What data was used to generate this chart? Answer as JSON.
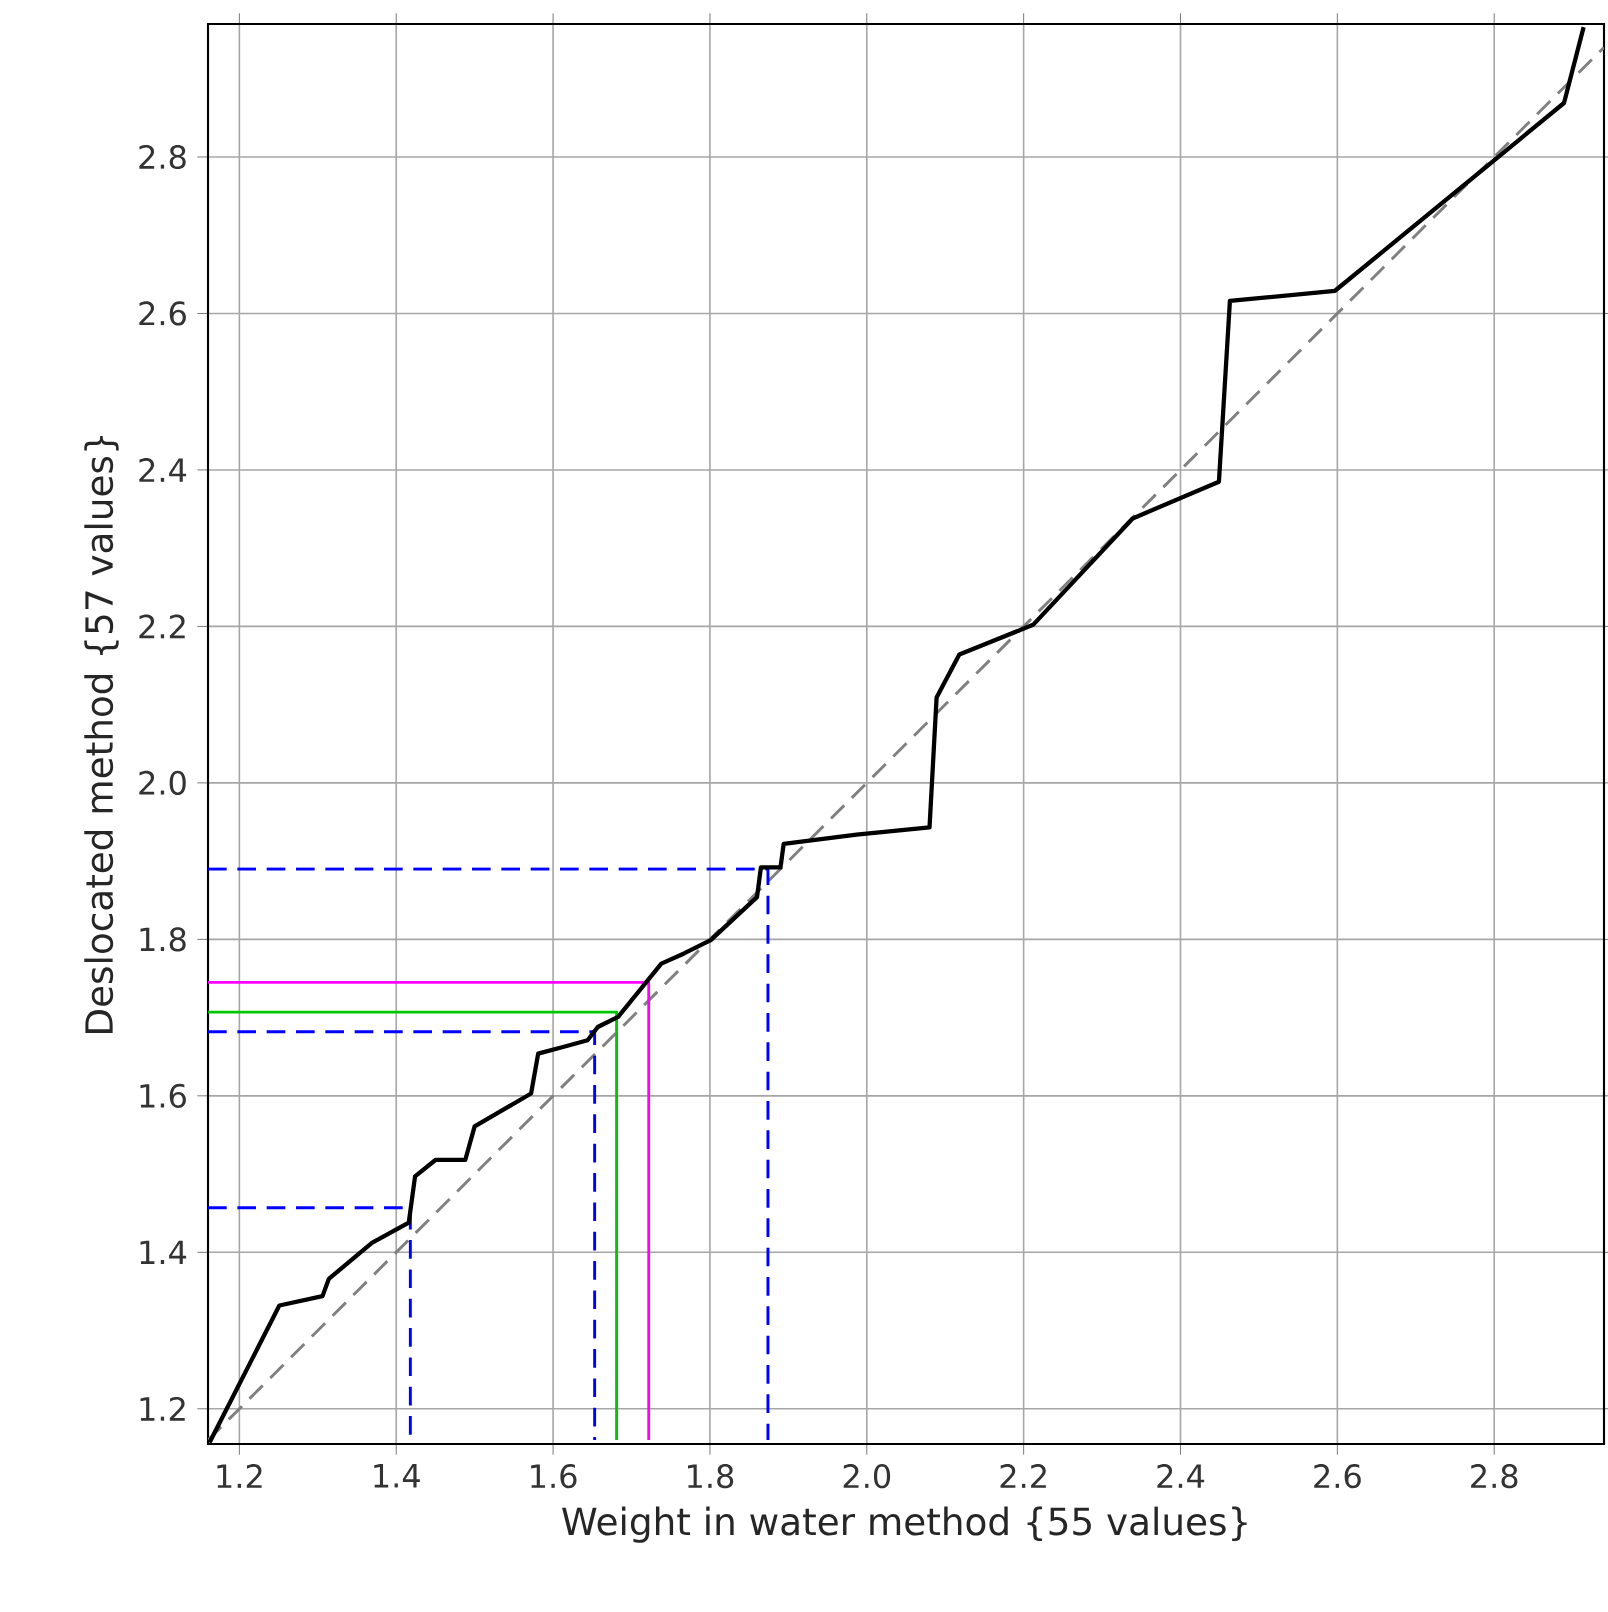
{
  "chart_data": {
    "type": "line",
    "xlabel": "Weight in water method  {55 values}",
    "ylabel": "Deslocated method  {57 values}",
    "xlim": [
      1.16,
      2.94
    ],
    "ylim": [
      1.155,
      2.97
    ],
    "xticks": [
      1.2,
      1.4,
      1.6,
      1.8,
      {
        "value": 2,
        "label": "2.0"
      },
      2.2,
      2.4,
      2.6,
      2.8
    ],
    "yticks": [
      1.2,
      1.4,
      1.6,
      1.8,
      {
        "value": 2,
        "label": "2.0"
      },
      2.2,
      2.4,
      2.6,
      2.8
    ],
    "grid": true,
    "marker": "none",
    "series": [
      {
        "color": "#808080",
        "line_style": "dashed",
        "x": [
          1.16,
          2.94
        ],
        "values": [
          1.16,
          2.94
        ]
      },
      {
        "color": "#0000ff",
        "line_style": "dashed",
        "x": [
          1.16,
          1.418,
          1.418
        ],
        "values": [
          1.457,
          1.457,
          1.16
        ]
      },
      {
        "color": "#0000ff",
        "line_style": "dashed",
        "x": [
          1.16,
          1.653,
          1.653
        ],
        "values": [
          1.682,
          1.682,
          1.16
        ]
      },
      {
        "color": "#0000ff",
        "line_style": "dashed",
        "x": [
          1.16,
          1.874,
          1.874
        ],
        "values": [
          1.89,
          1.89,
          1.16
        ]
      },
      {
        "color": "#00c800",
        "line_style": "solid",
        "x": [
          1.16,
          1.681,
          1.681
        ],
        "values": [
          1.707,
          1.707,
          1.16
        ]
      },
      {
        "color": "#ff00ff",
        "line_style": "solid",
        "x": [
          1.16,
          1.722,
          1.722
        ],
        "values": [
          1.745,
          1.745,
          1.16
        ]
      },
      {
        "color": "#000000",
        "line_style": "solid",
        "x": [
          1.162,
          1.251,
          1.306,
          1.314,
          1.369,
          1.416,
          1.424,
          1.45,
          1.488,
          1.5,
          1.572,
          1.581,
          1.615,
          1.644,
          1.657,
          1.683,
          1.738,
          1.767,
          1.801,
          1.86,
          1.865,
          1.89,
          1.894,
          1.987,
          2.08,
          2.089,
          2.118,
          2.212,
          2.339,
          2.449,
          2.463,
          2.597,
          2.889,
          2.914
        ],
        "values": [
          1.157,
          1.332,
          1.344,
          1.366,
          1.412,
          1.438,
          1.497,
          1.518,
          1.518,
          1.561,
          1.603,
          1.654,
          1.663,
          1.671,
          1.688,
          1.701,
          1.769,
          1.782,
          1.799,
          1.854,
          1.892,
          1.892,
          1.922,
          1.934,
          1.943,
          2.109,
          2.164,
          2.202,
          2.338,
          2.385,
          2.616,
          2.629,
          2.869,
          2.966
        ]
      }
    ]
  }
}
